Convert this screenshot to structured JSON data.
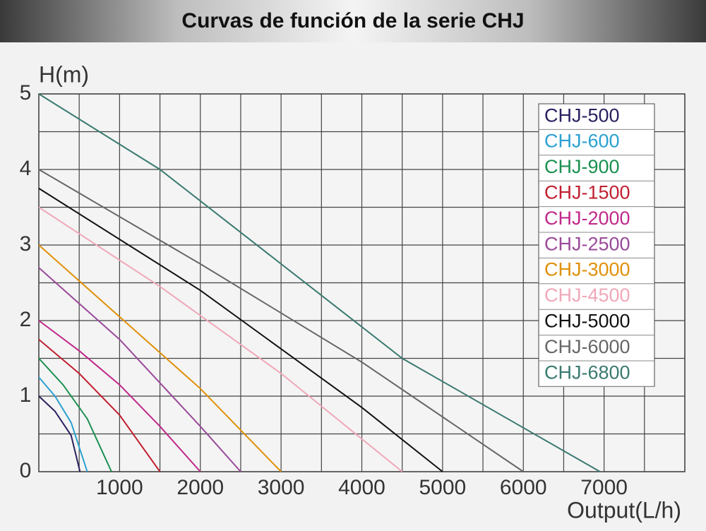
{
  "chart_data": {
    "type": "line",
    "title": "Curvas de función de la serie CHJ",
    "y_label": "H(m)",
    "x_label": "Output(L/h)",
    "xlim": [
      0,
      8000
    ],
    "ylim": [
      0,
      5
    ],
    "xticks": [
      1000,
      2000,
      3000,
      4000,
      5000,
      6000,
      7000
    ],
    "yticks": [
      0,
      1,
      2,
      3,
      4,
      5
    ],
    "xgrid": [
      0,
      500,
      1000,
      1500,
      2000,
      2500,
      3000,
      3500,
      4000,
      4500,
      5000,
      5500,
      6000,
      6500,
      7000,
      7500,
      8000
    ],
    "ygrid": [
      0,
      0.5,
      1,
      1.5,
      2,
      2.5,
      3,
      3.5,
      4,
      4.5,
      5
    ],
    "legend": "upper right",
    "series": [
      {
        "name": "CHJ-500",
        "color": "#2b2060",
        "x": [
          0,
          200,
          400,
          510
        ],
        "values": [
          1,
          0.8,
          0.48,
          0
        ]
      },
      {
        "name": "CHJ-600",
        "color": "#2aa0d0",
        "x": [
          0,
          200,
          400,
          600
        ],
        "values": [
          1.25,
          1.0,
          0.65,
          0
        ]
      },
      {
        "name": "CHJ-900",
        "color": "#1a9050",
        "x": [
          0,
          300,
          600,
          900
        ],
        "values": [
          1.5,
          1.15,
          0.7,
          0
        ]
      },
      {
        "name": "CHJ-1500",
        "color": "#c02030",
        "x": [
          0,
          500,
          1000,
          1500
        ],
        "values": [
          1.75,
          1.3,
          0.75,
          0
        ]
      },
      {
        "name": "CHJ-2000",
        "color": "#c0288a",
        "x": [
          0,
          500,
          1000,
          1500,
          2000
        ],
        "values": [
          2,
          1.6,
          1.15,
          0.6,
          0
        ]
      },
      {
        "name": "CHJ-2500",
        "color": "#9a4a9a",
        "x": [
          0,
          1000,
          2000,
          2500
        ],
        "values": [
          2.7,
          1.75,
          0.6,
          0
        ]
      },
      {
        "name": "CHJ-3000",
        "color": "#e0900a",
        "x": [
          0,
          1000,
          2000,
          3000
        ],
        "values": [
          3,
          2.05,
          1.1,
          0
        ]
      },
      {
        "name": "CHJ-4500",
        "color": "#f0a8b8",
        "x": [
          0,
          1500,
          3000,
          4500
        ],
        "values": [
          3.5,
          2.45,
          1.3,
          0
        ]
      },
      {
        "name": "CHJ-5000",
        "color": "#111111",
        "x": [
          0,
          2000,
          4000,
          5000
        ],
        "values": [
          3.75,
          2.4,
          0.85,
          0
        ]
      },
      {
        "name": "CHJ-6000",
        "color": "#666666",
        "x": [
          0,
          2000,
          4000,
          6000
        ],
        "values": [
          4,
          2.75,
          1.45,
          0
        ]
      },
      {
        "name": "CHJ-6800",
        "color": "#3a7a70",
        "x": [
          0,
          1500,
          4500,
          6950
        ],
        "values": [
          5,
          4,
          1.5,
          0
        ]
      }
    ]
  }
}
